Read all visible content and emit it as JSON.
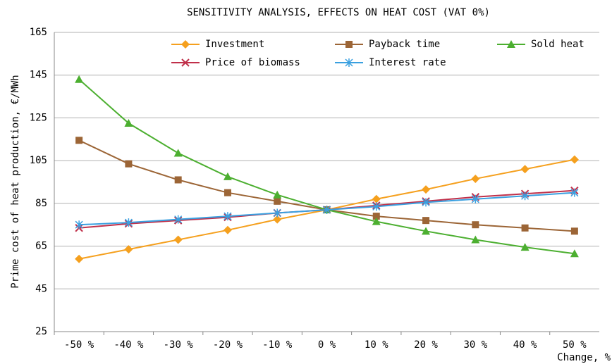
{
  "chart_data": {
    "type": "line",
    "title": "SENSITIVITY ANALYSIS, EFFECTS ON HEAT COST (VAT 0%)",
    "y_label": "Prime cost of heat production, €/MWh",
    "x_label": "Change, %",
    "categories": [
      "-50 %",
      "-40 %",
      "-30 %",
      "-20 %",
      "-10 %",
      "0 %",
      "10 %",
      "20 %",
      "30 %",
      "40 %",
      "50 %"
    ],
    "series": [
      {
        "name": "Investment",
        "color": "#f5a01e",
        "marker": "diamond",
        "values": [
          59,
          63.5,
          68,
          72.5,
          77.5,
          82,
          87,
          91.5,
          96.5,
          101,
          105.5
        ]
      },
      {
        "name": "Payback time",
        "color": "#9c6536",
        "marker": "square",
        "values": [
          114.5,
          103.5,
          96,
          90,
          86,
          82,
          79,
          77,
          75,
          73.5,
          72
        ]
      },
      {
        "name": "Sold heat",
        "color": "#4caf30",
        "marker": "triangle",
        "values": [
          143,
          122.5,
          108.5,
          97.5,
          89,
          82,
          76.5,
          72,
          68,
          64.5,
          61.5
        ]
      },
      {
        "name": "Price of biomass",
        "color": "#c0304a",
        "marker": "x",
        "values": [
          73.5,
          75.5,
          77,
          78.5,
          80.5,
          82,
          84,
          86,
          88,
          89.5,
          91
        ]
      },
      {
        "name": "Interest rate",
        "color": "#3aa0e0",
        "marker": "asterisk",
        "values": [
          75,
          76,
          77.5,
          79,
          80.5,
          82,
          83.5,
          85.5,
          87,
          88.5,
          90
        ]
      }
    ],
    "ylim": [
      25,
      165
    ],
    "yticks": [
      25,
      45,
      65,
      85,
      105,
      125,
      145,
      165
    ],
    "grid": true
  }
}
